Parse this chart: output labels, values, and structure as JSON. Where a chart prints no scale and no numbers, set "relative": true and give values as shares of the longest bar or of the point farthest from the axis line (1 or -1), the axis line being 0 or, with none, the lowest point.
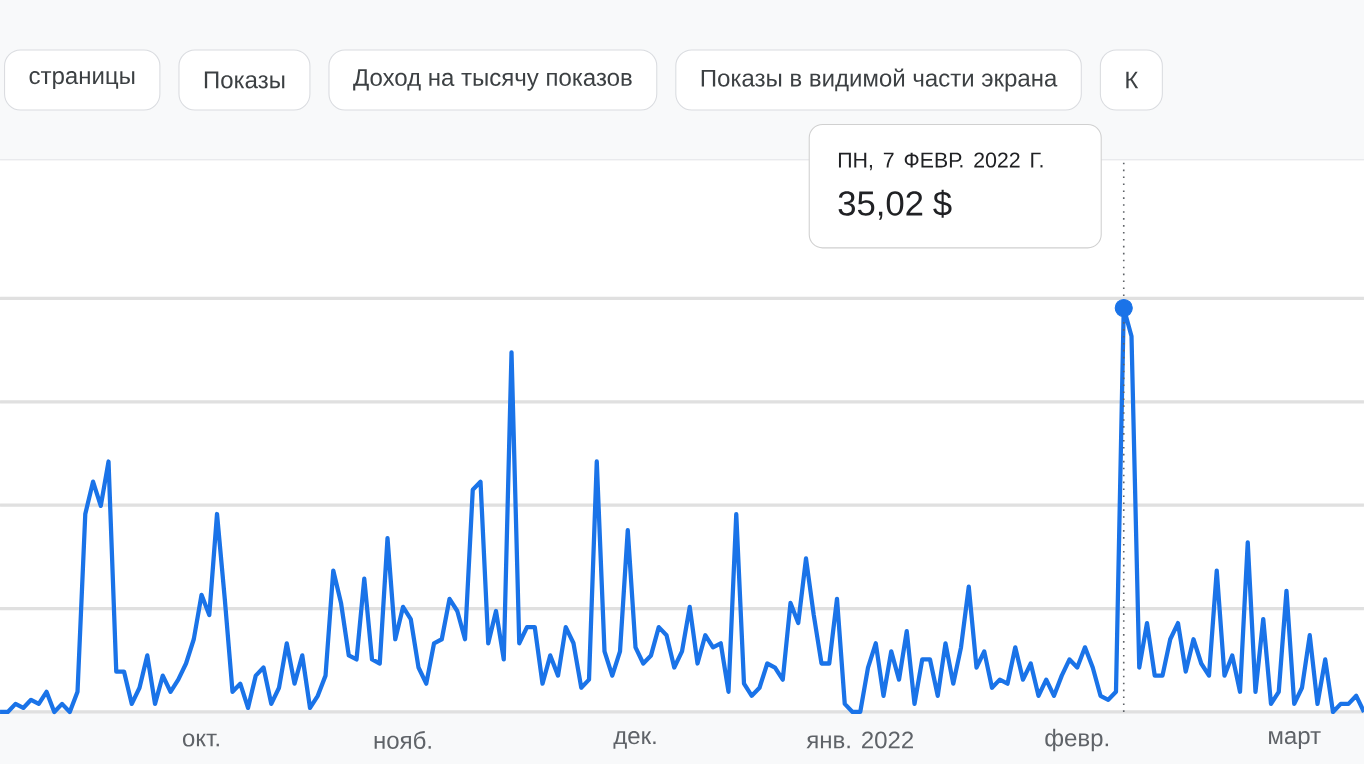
{
  "chart_data": {
    "type": "line",
    "relative": true,
    "grid": "y",
    "categories": [
      null,
      null,
      null,
      null,
      null,
      null,
      null,
      null,
      null,
      null,
      null,
      null,
      null,
      null,
      null,
      null,
      null,
      null,
      null,
      null,
      null,
      null,
      null,
      null,
      null,
      null,
      "окт.",
      null,
      null,
      null,
      null,
      null,
      null,
      null,
      null,
      null,
      null,
      null,
      null,
      null,
      null,
      null,
      null,
      null,
      null,
      null,
      null,
      null,
      null,
      null,
      null,
      null,
      "нояб.",
      null,
      null,
      null,
      null,
      null,
      null,
      null,
      null,
      null,
      null,
      null,
      null,
      null,
      null,
      null,
      null,
      null,
      null,
      null,
      null,
      null,
      null,
      null,
      null,
      null,
      null,
      null,
      null,
      null,
      "дек.",
      null,
      null,
      null,
      null,
      null,
      null,
      null,
      null,
      null,
      null,
      null,
      null,
      null,
      null,
      null,
      null,
      null,
      null,
      null,
      null,
      null,
      null,
      null,
      null,
      null,
      null,
      null,
      null,
      "янв. 2022",
      null,
      null,
      null,
      null,
      null,
      null,
      null,
      null,
      null,
      null,
      null,
      null,
      null,
      null,
      null,
      null,
      null,
      null,
      null,
      null,
      null,
      null,
      null,
      null,
      null,
      null,
      null,
      "февр.",
      null,
      null,
      null,
      null,
      null,
      null,
      null,
      null,
      null,
      null,
      null,
      null,
      null,
      null,
      null,
      null,
      null,
      null,
      null,
      null,
      null,
      null,
      null,
      null,
      null,
      null,
      null,
      "март",
      null,
      null,
      null,
      null,
      null,
      null,
      null,
      null,
      null
    ],
    "series": [
      {
        "color": "#1a73e8",
        "values": [
          0,
          0,
          0.02,
          0.01,
          0.03,
          0.02,
          0.05,
          0,
          0.02,
          0,
          0.05,
          0.49,
          0.57,
          0.51,
          0.62,
          0.1,
          0.1,
          0.02,
          0.06,
          0.14,
          0.02,
          0.09,
          0.05,
          0.08,
          0.12,
          0.18,
          0.29,
          0.24,
          0.49,
          0.28,
          0.05,
          0.07,
          0.01,
          0.09,
          0.11,
          0.02,
          0.06,
          0.17,
          0.07,
          0.14,
          0.01,
          0.04,
          0.09,
          0.35,
          0.27,
          0.14,
          0.13,
          0.33,
          0.13,
          0.12,
          0.43,
          0.18,
          0.26,
          0.23,
          0.11,
          0.07,
          0.17,
          0.18,
          0.28,
          0.25,
          0.18,
          0.55,
          0.57,
          0.17,
          0.25,
          0.13,
          0.89,
          0.17,
          0.21,
          0.21,
          0.07,
          0.14,
          0.09,
          0.21,
          0.17,
          0.06,
          0.08,
          0.62,
          0.15,
          0.09,
          0.15,
          0.45,
          0.16,
          0.12,
          0.14,
          0.21,
          0.19,
          0.11,
          0.15,
          0.26,
          0.12,
          0.19,
          0.16,
          0.17,
          0.05,
          0.49,
          0.07,
          0.04,
          0.06,
          0.12,
          0.11,
          0.08,
          0.27,
          0.22,
          0.38,
          0.24,
          0.12,
          0.12,
          0.28,
          0.02,
          0,
          0,
          0.11,
          0.17,
          0.04,
          0.15,
          0.08,
          0.2,
          0.02,
          0.13,
          0.13,
          0.04,
          0.17,
          0.07,
          0.16,
          0.31,
          0.11,
          0.15,
          0.06,
          0.08,
          0.07,
          0.16,
          0.08,
          0.12,
          0.04,
          0.08,
          0.04,
          0.09,
          0.13,
          0.11,
          0.16,
          0.11,
          0.04,
          0.03,
          0.05,
          1,
          0.93,
          0.11,
          0.22,
          0.09,
          0.09,
          0.18,
          0.22,
          0.1,
          0.18,
          0.12,
          0.09,
          0.35,
          0.09,
          0.14,
          0.05,
          0.42,
          0.05,
          0.23,
          0.02,
          0.05,
          0.3,
          0.02,
          0.06,
          0.19,
          0.02,
          0.13,
          0,
          0.02,
          0.02,
          0.04,
          0
        ]
      },
      {
        "type": "scatter",
        "marker": "circle",
        "color": "#1a73e8",
        "values": [
          null,
          null,
          null,
          null,
          null,
          null,
          null,
          null,
          null,
          null,
          null,
          null,
          null,
          null,
          null,
          null,
          null,
          null,
          null,
          null,
          null,
          null,
          null,
          null,
          null,
          null,
          null,
          null,
          null,
          null,
          null,
          null,
          null,
          null,
          null,
          null,
          null,
          null,
          null,
          null,
          null,
          null,
          null,
          null,
          null,
          null,
          null,
          null,
          null,
          null,
          null,
          null,
          null,
          null,
          null,
          null,
          null,
          null,
          null,
          null,
          null,
          null,
          null,
          null,
          null,
          null,
          null,
          null,
          null,
          null,
          null,
          null,
          null,
          null,
          null,
          null,
          null,
          null,
          null,
          null,
          null,
          null,
          null,
          null,
          null,
          null,
          null,
          null,
          null,
          null,
          null,
          null,
          null,
          null,
          null,
          null,
          null,
          null,
          null,
          null,
          null,
          null,
          null,
          null,
          null,
          null,
          null,
          null,
          null,
          null,
          null,
          null,
          null,
          null,
          null,
          null,
          null,
          null,
          null,
          null,
          null,
          null,
          null,
          null,
          null,
          null,
          null,
          null,
          null,
          null,
          null,
          null,
          null,
          null,
          null,
          null,
          null,
          null,
          null,
          null,
          null,
          null,
          null,
          null,
          null,
          1,
          null,
          null,
          null,
          null,
          null,
          null,
          null,
          null,
          null,
          null,
          null,
          null,
          null,
          null,
          null,
          null,
          null,
          null,
          null,
          null,
          null,
          null,
          null,
          null,
          null,
          null,
          null,
          null,
          null,
          null,
          null
        ]
      }
    ],
    "annotations": [
      "страницы",
      "Показы",
      "Доход на тысячу показов",
      "Показы в видимой части экрана",
      "К",
      "ПН, 7 ФЕВР. 2022 Г.",
      "35,02 $"
    ]
  }
}
